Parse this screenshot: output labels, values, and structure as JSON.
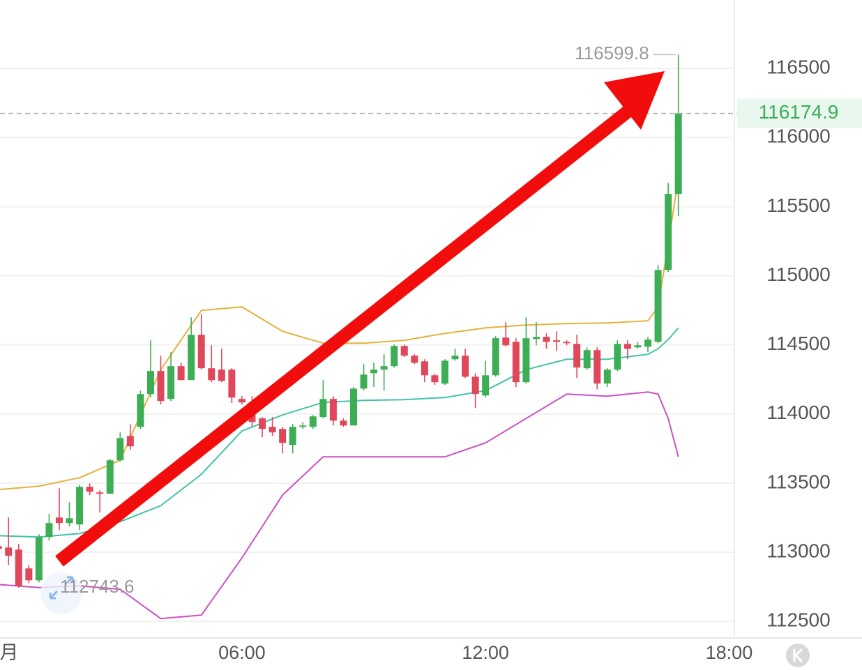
{
  "chart_data": {
    "type": "candlestick",
    "up_color": "#3dae55",
    "down_color": "#e0475a",
    "x": [
      0,
      0.25,
      0.5,
      0.75,
      1,
      1.25,
      1.5,
      1.75,
      2,
      2.25,
      2.5,
      2.75,
      3,
      3.25,
      3.5,
      3.75,
      4,
      4.25,
      4.5,
      4.75,
      5,
      5.25,
      5.5,
      5.75,
      6,
      6.25,
      6.5,
      6.75,
      7,
      7.25,
      7.5,
      7.75,
      8,
      8.25,
      8.5,
      8.75,
      9,
      9.25,
      9.5,
      9.75,
      10,
      10.25,
      10.5,
      10.75,
      11,
      11.25,
      11.5,
      11.75,
      12,
      12.25,
      12.5,
      12.75,
      13,
      13.25,
      13.5,
      13.75,
      14,
      14.25,
      14.5,
      14.75,
      15,
      15.25,
      15.5,
      15.75,
      16,
      16.25,
      16.5,
      16.75
    ],
    "open": [
      113044,
      113034,
      113019,
      112883,
      112797,
      113110,
      113251,
      113211,
      113201,
      113473,
      113433,
      113423,
      113665,
      113841,
      113907,
      114144,
      114311,
      114109,
      114346,
      114245,
      114573,
      114331,
      114321,
      114321,
      114109,
      114084,
      113968,
      113907,
      113892,
      113776,
      113907,
      113907,
      113978,
      114109,
      113952,
      113917,
      114184,
      114295,
      114321,
      114346,
      114492,
      114422,
      114381,
      114280,
      114220,
      114396,
      114422,
      114270,
      114134,
      114280,
      114553,
      114522,
      114230,
      114543,
      114558,
      114533,
      114522,
      114507,
      114331,
      114462,
      114220,
      114321,
      114507,
      114482,
      114487,
      114522,
      115042,
      115592
    ],
    "high": [
      113110,
      113251,
      113060,
      112908,
      113130,
      113277,
      113463,
      113362,
      113488,
      113498,
      113448,
      113675,
      113867,
      113927,
      114169,
      114533,
      114422,
      114447,
      114371,
      114699,
      114724,
      114497,
      114472,
      114331,
      114129,
      114129,
      113978,
      113978,
      113907,
      113927,
      113942,
      113993,
      114245,
      114129,
      113968,
      114195,
      114361,
      114371,
      114432,
      114502,
      114502,
      114432,
      114396,
      114290,
      114396,
      114472,
      114472,
      114295,
      114386,
      114563,
      114664,
      114548,
      114699,
      114664,
      114583,
      114598,
      114533,
      114573,
      114482,
      114482,
      114331,
      114533,
      114533,
      114522,
      114558,
      115077,
      115672,
      116599.8
    ],
    "low": [
      112959,
      112908,
      112743.6,
      112777,
      112782,
      113085,
      113161,
      113186,
      113161,
      113413,
      113287,
      113423,
      113655,
      113741,
      113892,
      114119,
      114069,
      114094,
      114245,
      114245,
      114321,
      114230,
      114230,
      114079,
      114069,
      113907,
      113831,
      113841,
      113715,
      113715,
      113892,
      113892,
      113968,
      113917,
      113907,
      113917,
      114169,
      114195,
      114169,
      114336,
      114412,
      114361,
      114230,
      114210,
      114210,
      114386,
      114260,
      114043,
      114119,
      114270,
      114487,
      114195,
      114220,
      114497,
      114472,
      114457,
      114497,
      114260,
      114321,
      114179,
      114195,
      114311,
      114396,
      114472,
      114447,
      114512,
      115027,
      115430
    ],
    "close": [
      113024,
      112974,
      112757,
      112797,
      113110,
      113211,
      113211,
      113246,
      113473,
      113438,
      113423,
      113665,
      113826,
      113766,
      114144,
      114311,
      114094,
      114346,
      114245,
      114573,
      114331,
      114245,
      114240,
      114119,
      114084,
      113942,
      113892,
      113867,
      113791,
      113907,
      113917,
      113983,
      114109,
      113952,
      113917,
      114184,
      114285,
      114321,
      114346,
      114492,
      114422,
      114371,
      114280,
      114230,
      114386,
      114422,
      114270,
      114144,
      114280,
      114548,
      114497,
      114230,
      114548,
      114558,
      114522,
      114522,
      114512,
      114336,
      114462,
      114220,
      114321,
      114507,
      114472,
      114497,
      114538,
      115042,
      115592,
      116174.9
    ],
    "bands": [
      {
        "color": "#e4b23a",
        "x": [
          0,
          1,
          2,
          3,
          4,
          5,
          6,
          7,
          8,
          9,
          10,
          11,
          12,
          13,
          14,
          15,
          16,
          16.25,
          16.5,
          16.75
        ],
        "values": [
          113453,
          113478,
          113539,
          113665,
          114321,
          114749,
          114775,
          114598,
          114512,
          114512,
          114533,
          114583,
          114623,
          114643,
          114654,
          114659,
          114674,
          114775,
          115229,
          115708
        ]
      },
      {
        "color": "#3fc4a8",
        "x": [
          0,
          1,
          2,
          3,
          4,
          5,
          6,
          7,
          8,
          9,
          10,
          11,
          12,
          13,
          14,
          15,
          16,
          16.25,
          16.5,
          16.75
        ],
        "values": [
          113120,
          113110,
          113135,
          113221,
          113337,
          113564,
          113877,
          113993,
          114084,
          114099,
          114104,
          114119,
          114169,
          114321,
          114396,
          114396,
          114432,
          114472,
          114538,
          114623
        ]
      },
      {
        "color": "#cc4fc4",
        "x": [
          0,
          1,
          2,
          3,
          4,
          5,
          6,
          7,
          8,
          9,
          10,
          11,
          12,
          13,
          14,
          15,
          16,
          16.25,
          16.5,
          16.75
        ],
        "values": [
          112767,
          112744,
          112757,
          112732,
          112520,
          112545,
          112959,
          113413,
          113690,
          113690,
          113690,
          113690,
          113791,
          113968,
          114144,
          114129,
          114159,
          114144,
          113968,
          113690
        ]
      }
    ],
    "xlim": [
      0.04,
      18.13
    ],
    "ylim": [
      112380,
      116995
    ],
    "xticks": [
      {
        "value": 0,
        "label": "月"
      },
      {
        "value": 6,
        "label": "06:00"
      },
      {
        "value": 12,
        "label": "12:00"
      },
      {
        "value": 18,
        "label": "18:00"
      }
    ],
    "yticks": [
      112500,
      113000,
      113500,
      114000,
      114500,
      115000,
      115500,
      116000,
      116500
    ],
    "grid": true,
    "last_price_line": true
  }
}
